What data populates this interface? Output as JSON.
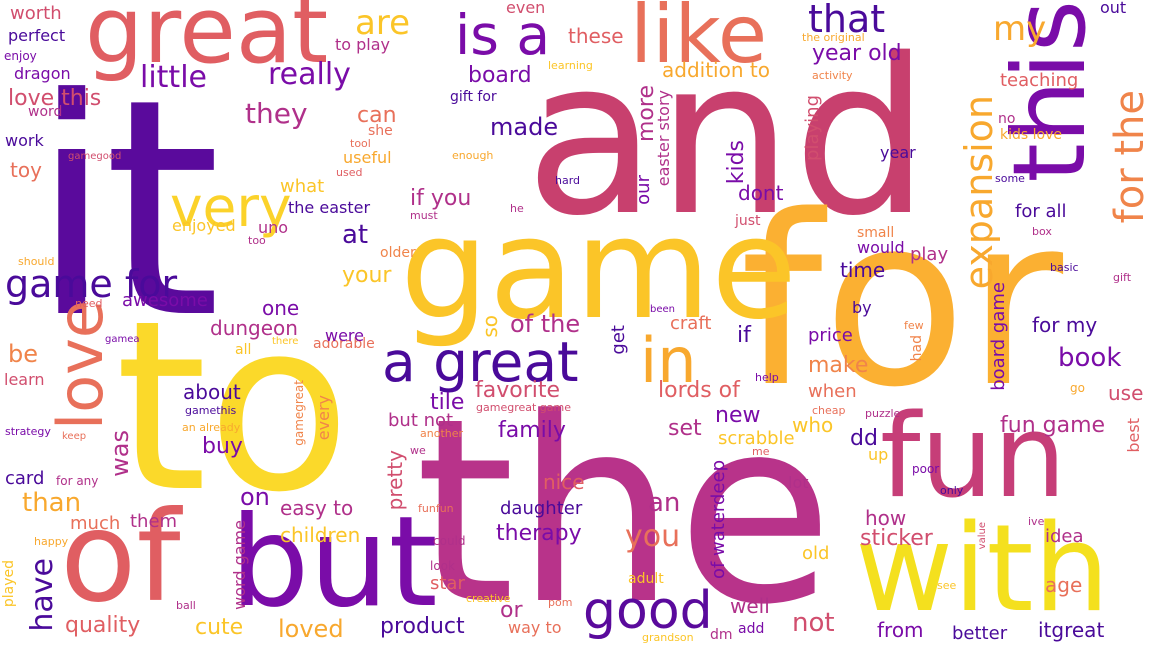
{
  "palette": {
    "dark_purple": "#4a0a9a",
    "purple": "#7a0ca8",
    "magenta": "#b0308a",
    "pink": "#d14e6e",
    "coral": "#e8705a",
    "orange": "#f89540",
    "yellow": "#fcd225"
  },
  "words": [
    "it",
    "and",
    "to",
    "the",
    "for",
    "game",
    "of",
    "but",
    "with",
    "fun",
    "great",
    "like",
    "this",
    "is a",
    "love",
    "in",
    "a great",
    "very",
    "good",
    "for the",
    "expansion",
    "that",
    "my",
    "are",
    "game for",
    "little",
    "really",
    "year old",
    "addition to",
    "board",
    "love this",
    "they",
    "can",
    "if you",
    "made",
    "more",
    "kids",
    "easter story",
    "playing",
    "dont",
    "year",
    "for all",
    "teaching",
    "no",
    "kids love",
    "our",
    "the easter",
    "what",
    "enjoyed",
    "uno",
    "at",
    "your",
    "play",
    "would",
    "small",
    "time",
    "one",
    "dungeon",
    "of the",
    "so",
    "awesome",
    "adorable",
    "were",
    "get",
    "craft",
    "if",
    "price",
    "for my",
    "by",
    "book",
    "make",
    "lords of",
    "board game",
    "be",
    "about",
    "tile",
    "favorite",
    "when",
    "new",
    "who",
    "was",
    "buy",
    "but not",
    "family",
    "set",
    "scrabble",
    "dd",
    "fun game",
    "use",
    "best",
    "have",
    "on",
    "card",
    "than",
    "easy to",
    "pretty",
    "nice",
    "an",
    "of waterdeep",
    "lot",
    "them",
    "much",
    "children",
    "daughter",
    "therapy",
    "you",
    "how",
    "sticker",
    "idea",
    "quality",
    "cute",
    "loved",
    "product",
    "or",
    "way to",
    "well",
    "not",
    "from",
    "better",
    "itgreat",
    "age",
    "old",
    "star",
    "word game",
    "every",
    "gamegreat",
    "worth",
    "perfect",
    "enjoy",
    "dragon",
    "word",
    "work",
    "toy",
    "gamegood",
    "to play",
    "even",
    "these",
    "the original",
    "learning",
    "activity",
    "out",
    "useful",
    "she",
    "tool",
    "used",
    "enough",
    "hard",
    "he",
    "must",
    "just",
    "too",
    "some",
    "box",
    "should",
    "older",
    "basic",
    "gift",
    "need",
    "been",
    "few",
    "had",
    "all",
    "there",
    "gamea",
    "learn",
    "help",
    "cheap",
    "puzzle",
    "strategy",
    "keep",
    "an already",
    "gamegreat game",
    "another",
    "go",
    "gamethis",
    "me",
    "poor",
    "only",
    "we",
    "for any",
    "ive",
    "value",
    "funfun",
    "could",
    "happy",
    "played",
    "look",
    "creative",
    "pom",
    "see",
    "adult",
    "ball",
    "grandson",
    "dm",
    "add",
    "up",
    "gift for"
  ]
}
